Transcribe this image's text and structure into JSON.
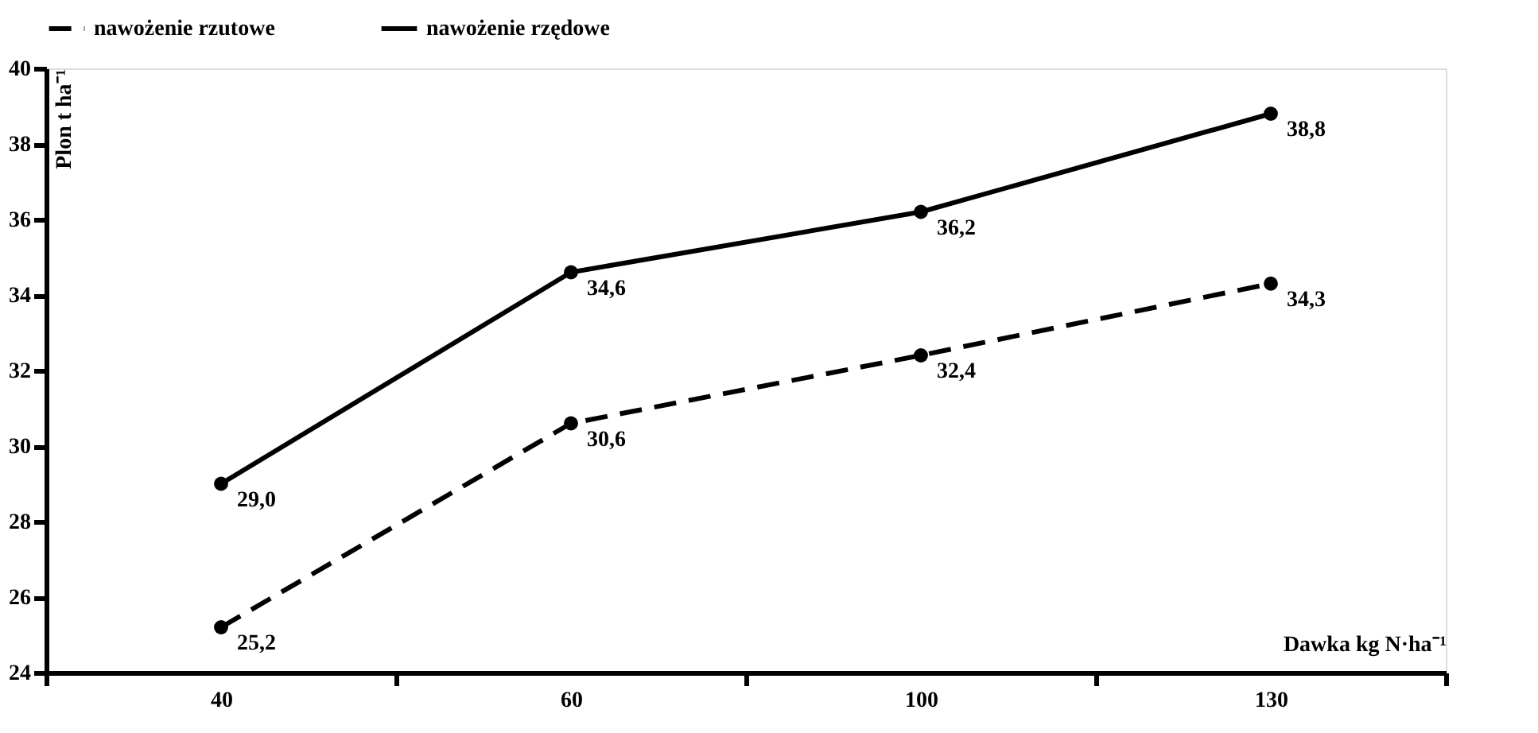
{
  "chart_data": {
    "type": "line",
    "xlabel": "Dawka kg N·ha⁻¹",
    "ylabel": "Plon t ha⁻¹",
    "categories": [
      "40",
      "60",
      "100",
      "130"
    ],
    "series": [
      {
        "name": "nawożenie rzutowe",
        "color": "#000000",
        "line_style": "dashed",
        "values": [
          25.2,
          30.6,
          32.4,
          34.3
        ],
        "value_labels": [
          "25,2",
          "30,6",
          "32,4",
          "34,3"
        ]
      },
      {
        "name": "nawożenie rzędowe",
        "color": "#000000",
        "line_style": "solid",
        "values": [
          29.0,
          34.6,
          36.2,
          38.8
        ],
        "value_labels": [
          "29,0",
          "34,6",
          "36,2",
          "38,8"
        ]
      }
    ],
    "ylim": [
      24,
      40
    ],
    "yticks": [
      24,
      26,
      28,
      30,
      32,
      34,
      36,
      38,
      40
    ],
    "grid": false,
    "legend": "top",
    "marker": "circle"
  }
}
